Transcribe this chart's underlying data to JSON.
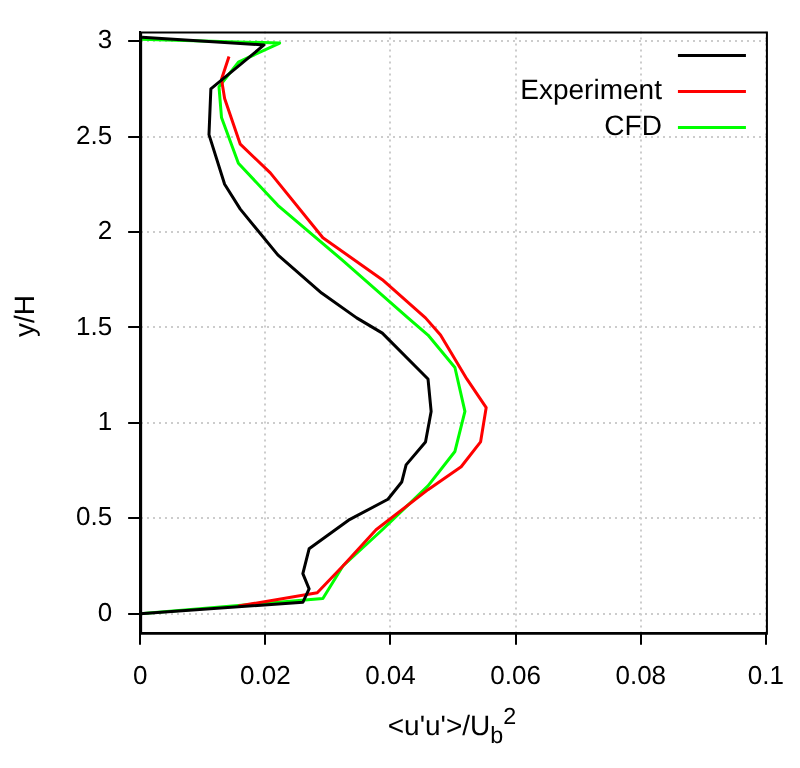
{
  "chart_data": {
    "type": "line",
    "xlabel": "<u'u'>/U$_{b}$$^{2}$",
    "ylabel": "y/H",
    "xlim": [
      0,
      0.1
    ],
    "ylim": [
      -0.1,
      3.05
    ],
    "xticks": [
      0,
      0.02,
      0.04,
      0.06,
      0.08,
      0.1
    ],
    "yticks": [
      0,
      0.5,
      1,
      1.5,
      2,
      2.5,
      3
    ],
    "grid": true,
    "legend": "top right",
    "marker": "none",
    "line_style": "solid",
    "series": [
      {
        "color": "#000000",
        "x": [
          0.0003,
          0.0198,
          0.0113,
          0.011,
          0.0135,
          0.016,
          0.022,
          0.029,
          0.0346,
          0.0387,
          0.046,
          0.0465,
          0.0456,
          0.0425,
          0.0418,
          0.0396,
          0.0333,
          0.027,
          0.026,
          0.027,
          0.026,
          0
        ],
        "values": [
          3.02,
          2.98,
          2.75,
          2.51,
          2.25,
          2.12,
          1.88,
          1.68,
          1.55,
          1.47,
          1.23,
          1.06,
          0.9,
          0.78,
          0.69,
          0.6,
          0.49,
          0.34,
          0.21,
          0.13,
          0.06,
          0
        ]
      },
      {
        "name": "Experiment",
        "color": "#ff0000",
        "x": [
          0.0142,
          0.013,
          0.0135,
          0.016,
          0.0208,
          0.0292,
          0.0387,
          0.0456,
          0.048,
          0.0522,
          0.0553,
          0.0544,
          0.0513,
          0.046,
          0.0377,
          0.0324,
          0.0283,
          0.0157
        ],
        "values": [
          2.92,
          2.8,
          2.7,
          2.46,
          2.31,
          1.97,
          1.75,
          1.55,
          1.46,
          1.23,
          1.08,
          0.9,
          0.77,
          0.65,
          0.44,
          0.25,
          0.11,
          0.04
        ]
      },
      {
        "name": "CFD",
        "color": "#00ff00",
        "x": [
          0,
          0.0223,
          0.0157,
          0.0126,
          0.013,
          0.0157,
          0.022,
          0.0324,
          0.0428,
          0.046,
          0.0503,
          0.0519,
          0.0503,
          0.046,
          0.0387,
          0.0324,
          0.0292,
          0
        ],
        "values": [
          3.01,
          2.99,
          2.89,
          2.76,
          2.6,
          2.36,
          2.14,
          1.85,
          1.55,
          1.46,
          1.29,
          1.06,
          0.85,
          0.67,
          0.44,
          0.25,
          0.08,
          0
        ]
      }
    ]
  }
}
